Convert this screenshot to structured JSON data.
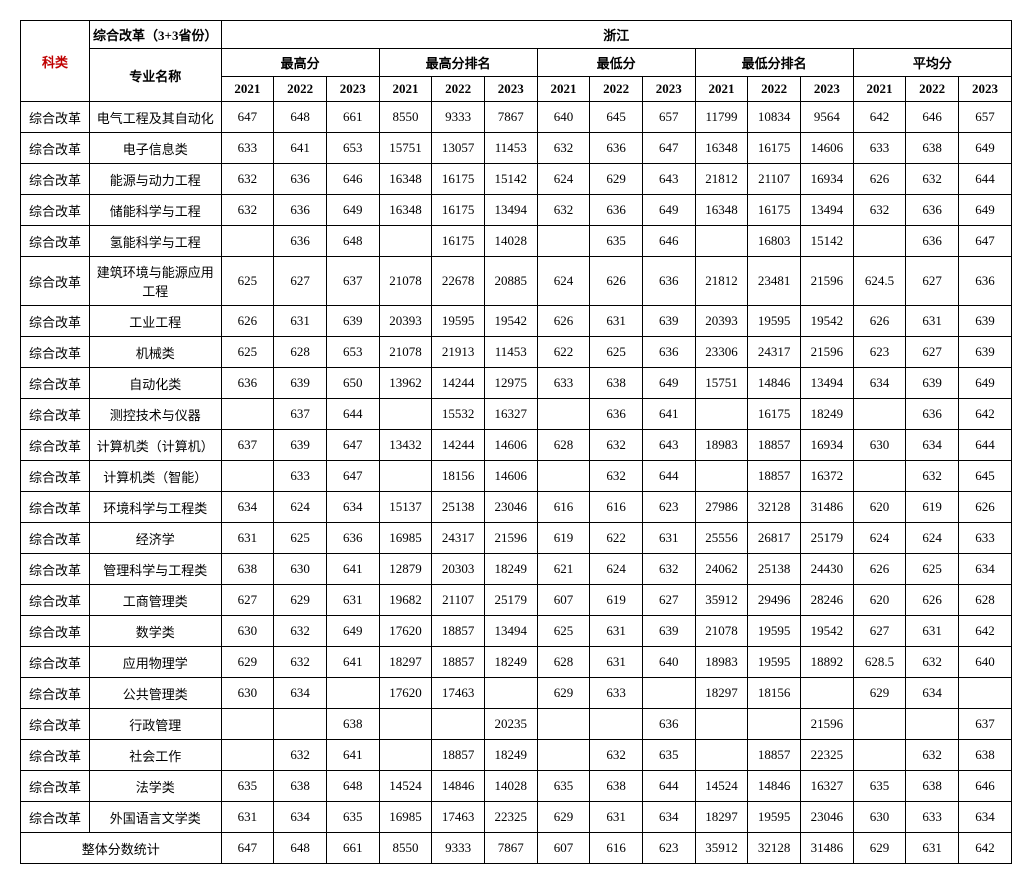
{
  "header": {
    "kelei": "科类",
    "reform_header": "综合改革（3+3省份）",
    "province": "浙江",
    "major_name": "专业名称",
    "groups": [
      "最高分",
      "最高分排名",
      "最低分",
      "最低分排名",
      "平均分"
    ],
    "years": [
      "2021",
      "2022",
      "2023"
    ]
  },
  "kelei_label": "综合改革",
  "summary_label": "整体分数统计",
  "rows": [
    {
      "major": "电气工程及其自动化",
      "v": [
        "647",
        "648",
        "661",
        "8550",
        "9333",
        "7867",
        "640",
        "645",
        "657",
        "11799",
        "10834",
        "9564",
        "642",
        "646",
        "657"
      ]
    },
    {
      "major": "电子信息类",
      "v": [
        "633",
        "641",
        "653",
        "15751",
        "13057",
        "11453",
        "632",
        "636",
        "647",
        "16348",
        "16175",
        "14606",
        "633",
        "638",
        "649"
      ]
    },
    {
      "major": "能源与动力工程",
      "v": [
        "632",
        "636",
        "646",
        "16348",
        "16175",
        "15142",
        "624",
        "629",
        "643",
        "21812",
        "21107",
        "16934",
        "626",
        "632",
        "644"
      ]
    },
    {
      "major": "储能科学与工程",
      "v": [
        "632",
        "636",
        "649",
        "16348",
        "16175",
        "13494",
        "632",
        "636",
        "649",
        "16348",
        "16175",
        "13494",
        "632",
        "636",
        "649"
      ]
    },
    {
      "major": "氢能科学与工程",
      "v": [
        "",
        "636",
        "648",
        "",
        "16175",
        "14028",
        "",
        "635",
        "646",
        "",
        "16803",
        "15142",
        "",
        "636",
        "647"
      ]
    },
    {
      "major": "建筑环境与能源应用工程",
      "tall": true,
      "v": [
        "625",
        "627",
        "637",
        "21078",
        "22678",
        "20885",
        "624",
        "626",
        "636",
        "21812",
        "23481",
        "21596",
        "624.5",
        "627",
        "636"
      ]
    },
    {
      "major": "工业工程",
      "v": [
        "626",
        "631",
        "639",
        "20393",
        "19595",
        "19542",
        "626",
        "631",
        "639",
        "20393",
        "19595",
        "19542",
        "626",
        "631",
        "639"
      ]
    },
    {
      "major": "机械类",
      "v": [
        "625",
        "628",
        "653",
        "21078",
        "21913",
        "11453",
        "622",
        "625",
        "636",
        "23306",
        "24317",
        "21596",
        "623",
        "627",
        "639"
      ]
    },
    {
      "major": "自动化类",
      "v": [
        "636",
        "639",
        "650",
        "13962",
        "14244",
        "12975",
        "633",
        "638",
        "649",
        "15751",
        "14846",
        "13494",
        "634",
        "639",
        "649"
      ]
    },
    {
      "major": "测控技术与仪器",
      "v": [
        "",
        "637",
        "644",
        "",
        "15532",
        "16327",
        "",
        "636",
        "641",
        "",
        "16175",
        "18249",
        "",
        "636",
        "642"
      ]
    },
    {
      "major": "计算机类（计算机）",
      "v": [
        "637",
        "639",
        "647",
        "13432",
        "14244",
        "14606",
        "628",
        "632",
        "643",
        "18983",
        "18857",
        "16934",
        "630",
        "634",
        "644"
      ]
    },
    {
      "major": "计算机类（智能）",
      "v": [
        "",
        "633",
        "647",
        "",
        "18156",
        "14606",
        "",
        "632",
        "644",
        "",
        "18857",
        "16372",
        "",
        "632",
        "645"
      ]
    },
    {
      "major": "环境科学与工程类",
      "v": [
        "634",
        "624",
        "634",
        "15137",
        "25138",
        "23046",
        "616",
        "616",
        "623",
        "27986",
        "32128",
        "31486",
        "620",
        "619",
        "626"
      ]
    },
    {
      "major": "经济学",
      "v": [
        "631",
        "625",
        "636",
        "16985",
        "24317",
        "21596",
        "619",
        "622",
        "631",
        "25556",
        "26817",
        "25179",
        "624",
        "624",
        "633"
      ]
    },
    {
      "major": "管理科学与工程类",
      "v": [
        "638",
        "630",
        "641",
        "12879",
        "20303",
        "18249",
        "621",
        "624",
        "632",
        "24062",
        "25138",
        "24430",
        "626",
        "625",
        "634"
      ]
    },
    {
      "major": "工商管理类",
      "v": [
        "627",
        "629",
        "631",
        "19682",
        "21107",
        "25179",
        "607",
        "619",
        "627",
        "35912",
        "29496",
        "28246",
        "620",
        "626",
        "628"
      ]
    },
    {
      "major": "数学类",
      "v": [
        "630",
        "632",
        "649",
        "17620",
        "18857",
        "13494",
        "625",
        "631",
        "639",
        "21078",
        "19595",
        "19542",
        "627",
        "631",
        "642"
      ]
    },
    {
      "major": "应用物理学",
      "v": [
        "629",
        "632",
        "641",
        "18297",
        "18857",
        "18249",
        "628",
        "631",
        "640",
        "18983",
        "19595",
        "18892",
        "628.5",
        "632",
        "640"
      ]
    },
    {
      "major": "公共管理类",
      "v": [
        "630",
        "634",
        "",
        "17620",
        "17463",
        "",
        "629",
        "633",
        "",
        "18297",
        "18156",
        "",
        "629",
        "634",
        ""
      ]
    },
    {
      "major": "行政管理",
      "v": [
        "",
        "",
        "638",
        "",
        "",
        "20235",
        "",
        "",
        "636",
        "",
        "",
        "21596",
        "",
        "",
        "637"
      ]
    },
    {
      "major": "社会工作",
      "v": [
        "",
        "632",
        "641",
        "",
        "18857",
        "18249",
        "",
        "632",
        "635",
        "",
        "18857",
        "22325",
        "",
        "632",
        "638"
      ]
    },
    {
      "major": "法学类",
      "v": [
        "635",
        "638",
        "648",
        "14524",
        "14846",
        "14028",
        "635",
        "638",
        "644",
        "14524",
        "14846",
        "16327",
        "635",
        "638",
        "646"
      ]
    },
    {
      "major": "外国语言文学类",
      "v": [
        "631",
        "634",
        "635",
        "16985",
        "17463",
        "22325",
        "629",
        "631",
        "634",
        "18297",
        "19595",
        "23046",
        "630",
        "633",
        "634"
      ]
    }
  ],
  "summary": [
    "647",
    "648",
    "661",
    "8550",
    "9333",
    "7867",
    "607",
    "616",
    "623",
    "35912",
    "32128",
    "31486",
    "629",
    "631",
    "642"
  ]
}
